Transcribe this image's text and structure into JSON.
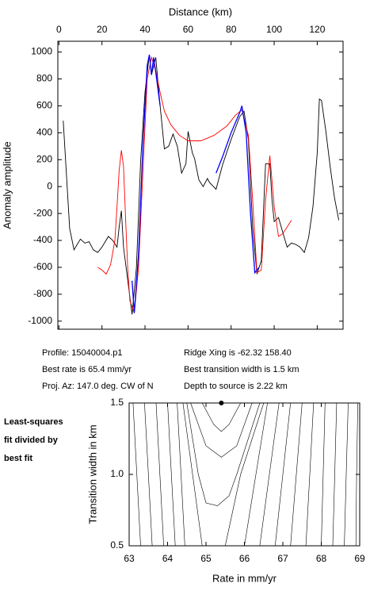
{
  "chart_data": [
    {
      "type": "line",
      "xlabel": "Distance (km)",
      "ylabel": "Anomaly amplitude",
      "xlim": [
        -0.5,
        132
      ],
      "ylim": [
        -1060,
        1080
      ],
      "xticks": [
        0,
        20,
        40,
        60,
        80,
        100,
        120
      ],
      "yticks": [
        -1000,
        -800,
        -600,
        -400,
        -200,
        0,
        200,
        400,
        600,
        800,
        1000
      ],
      "series": [
        {
          "color": "#000000",
          "x": [
            2,
            5,
            7,
            10,
            12,
            14,
            16,
            18,
            20,
            23,
            25,
            27,
            28,
            29,
            30,
            32,
            34,
            36,
            38,
            40,
            42,
            43,
            45,
            47,
            49,
            51,
            53,
            55,
            57,
            59,
            60,
            62,
            63,
            65,
            67,
            69,
            70,
            73,
            76,
            80,
            84,
            86,
            88,
            90,
            92,
            94,
            96,
            98,
            99,
            100,
            102,
            104,
            106,
            108,
            110,
            112,
            114,
            116,
            118,
            120,
            121,
            122,
            124,
            126,
            128,
            130
          ],
          "values": [
            490,
            -310,
            -470,
            -390,
            -420,
            -410,
            -470,
            -490,
            -450,
            -370,
            -400,
            -450,
            -300,
            -180,
            -450,
            -700,
            -950,
            -600,
            200,
            700,
            980,
            830,
            960,
            600,
            280,
            300,
            390,
            300,
            100,
            170,
            410,
            250,
            210,
            50,
            0,
            60,
            30,
            -20,
            160,
            350,
            520,
            560,
            350,
            -300,
            -650,
            -550,
            170,
            170,
            -100,
            -260,
            -230,
            -340,
            -450,
            -420,
            -430,
            -450,
            -490,
            -380,
            -150,
            250,
            650,
            640,
            410,
            150,
            -80,
            -250
          ]
        },
        {
          "color": "#ff0000",
          "x": [
            18,
            20,
            22,
            24,
            26,
            27,
            28,
            29,
            30,
            31,
            32,
            33,
            35,
            37,
            39,
            41,
            43,
            45,
            47,
            49,
            52,
            56,
            60,
            66,
            72,
            78,
            82,
            85,
            88,
            90,
            92,
            94,
            96,
            98,
            100,
            102,
            104,
            106,
            108
          ],
          "values": [
            -600,
            -620,
            -650,
            -580,
            -400,
            -150,
            120,
            270,
            150,
            -250,
            -620,
            -850,
            -940,
            -600,
            100,
            800,
            960,
            860,
            700,
            560,
            460,
            380,
            340,
            340,
            380,
            450,
            530,
            570,
            380,
            -100,
            -640,
            -620,
            -100,
            230,
            -150,
            -370,
            -350,
            -300,
            -250
          ]
        },
        {
          "color": "#0000ff",
          "x": [
            34,
            35,
            37,
            39,
            41,
            42,
            43,
            44,
            45,
            47,
            60,
            73,
            76,
            80,
            84,
            85,
            87,
            89,
            91,
            93
          ],
          "values": [
            -700,
            -940,
            -500,
            300,
            900,
            980,
            830,
            960,
            850,
            600,
            null,
            100,
            220,
            400,
            550,
            600,
            400,
            -200,
            -640,
            -600
          ]
        }
      ]
    },
    {
      "type": "contour",
      "xlabel": "Rate in mm/yr",
      "ylabel": "Transition width in km",
      "xlim": [
        63,
        69
      ],
      "ylim": [
        0.5,
        1.5
      ],
      "xticks": [
        63,
        64,
        65,
        66,
        67,
        68,
        69
      ],
      "yticks": [
        {
          "value": 0.5,
          "label": "0.5"
        },
        {
          "value": 1.0,
          "label": "1.0"
        },
        {
          "value": 1.5,
          "label": "1.5"
        }
      ],
      "best": {
        "x": 65.4,
        "y": 1.5
      },
      "contours": [
        {
          "x": [
            63.1,
            63.2,
            63.3
          ],
          "y": [
            1.5,
            1.0,
            0.5
          ]
        },
        {
          "x": [
            63.4,
            63.5,
            63.6
          ],
          "y": [
            1.5,
            1.0,
            0.5
          ]
        },
        {
          "x": [
            63.7,
            63.8,
            63.9
          ],
          "y": [
            1.5,
            1.0,
            0.5
          ]
        },
        {
          "x": [
            64.0,
            64.1,
            64.2
          ],
          "y": [
            1.5,
            1.0,
            0.5
          ]
        },
        {
          "x": [
            64.25,
            64.35,
            64.45
          ],
          "y": [
            1.5,
            1.0,
            0.5
          ]
        },
        {
          "x": [
            64.4,
            64.7,
            64.9
          ],
          "y": [
            1.5,
            0.9,
            0.5
          ]
        },
        {
          "x": [
            64.5,
            64.8,
            65.0,
            65.3,
            65.6,
            65.8,
            66.4
          ],
          "y": [
            1.5,
            1.0,
            0.8,
            0.78,
            0.85,
            1.0,
            1.5
          ]
        },
        {
          "x": [
            64.6,
            65.0,
            65.4,
            65.8,
            66.2
          ],
          "y": [
            1.5,
            1.2,
            1.12,
            1.2,
            1.5
          ]
        },
        {
          "x": [
            64.9,
            65.2,
            65.4,
            65.6,
            65.9
          ],
          "y": [
            1.5,
            1.35,
            1.3,
            1.35,
            1.5
          ]
        },
        {
          "x": [
            66.5,
            65.9,
            65.5
          ],
          "y": [
            1.5,
            1.0,
            0.5
          ]
        },
        {
          "x": [
            66.6,
            66.3,
            66.0
          ],
          "y": [
            1.5,
            1.0,
            0.5
          ]
        },
        {
          "x": [
            66.9,
            66.65,
            66.4
          ],
          "y": [
            1.5,
            1.0,
            0.5
          ]
        },
        {
          "x": [
            67.2,
            67.0,
            66.8
          ],
          "y": [
            1.5,
            1.0,
            0.5
          ]
        },
        {
          "x": [
            67.5,
            67.35,
            67.2
          ],
          "y": [
            1.5,
            1.0,
            0.5
          ]
        },
        {
          "x": [
            67.8,
            67.7,
            67.6
          ],
          "y": [
            1.5,
            1.0,
            0.5
          ]
        },
        {
          "x": [
            68.1,
            68.05,
            68.0
          ],
          "y": [
            1.5,
            1.0,
            0.5
          ]
        },
        {
          "x": [
            68.4,
            68.35,
            68.3
          ],
          "y": [
            1.5,
            1.0,
            0.5
          ]
        },
        {
          "x": [
            68.7,
            68.65,
            68.6
          ],
          "y": [
            1.5,
            1.0,
            0.5
          ]
        },
        {
          "x": [
            68.95,
            68.92,
            68.9
          ],
          "y": [
            1.5,
            1.0,
            0.5
          ]
        }
      ]
    }
  ],
  "info": [
    "Profile: 15040004.p1",
    "Ridge Xing is -62.32 158.40",
    "Best rate is 65.4 mm/yr",
    "Best transition width is 1.5 km",
    "Proj. Az: 147.0 deg. CW of N",
    "Depth to source is   2.22 km"
  ],
  "side_label": [
    "Least-squares",
    "fit divided by",
    "best fit"
  ]
}
